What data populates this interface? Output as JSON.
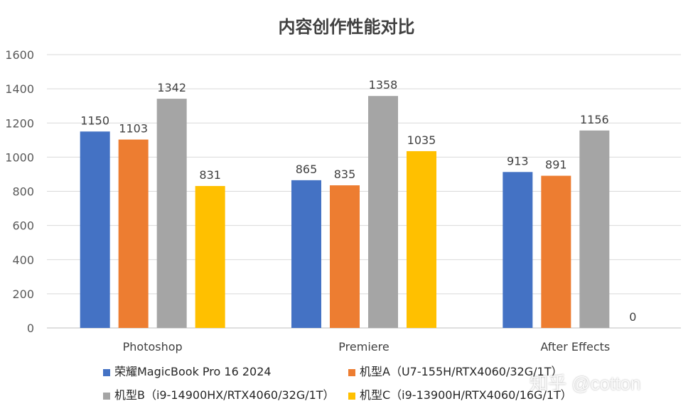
{
  "chart_data": {
    "type": "bar",
    "title": "内容创作性能对比",
    "categories": [
      "Photoshop",
      "Premiere",
      "After Effects"
    ],
    "series": [
      {
        "name": "荣耀MagicBook Pro 16 2024",
        "color": "#4472C4",
        "values": [
          1150,
          865,
          913
        ]
      },
      {
        "name": "机型A（U7-155H/RTX4060/32G/1T）",
        "color": "#ED7D31",
        "values": [
          1103,
          835,
          891
        ]
      },
      {
        "name": "机型B（i9-14900HX/RTX4060/32G/1T）",
        "color": "#A5A5A5",
        "values": [
          1342,
          1358,
          1156
        ]
      },
      {
        "name": "机型C（i9-13900H/RTX4060/16G/1T）",
        "color": "#FFC000",
        "values": [
          831,
          1035,
          0
        ]
      }
    ],
    "ylim": [
      0,
      1600
    ],
    "yticks": [
      0,
      200,
      400,
      600,
      800,
      1000,
      1200,
      1400,
      1600
    ],
    "grid": true,
    "legend_position": "bottom"
  },
  "watermark": "知乎 @cotton"
}
